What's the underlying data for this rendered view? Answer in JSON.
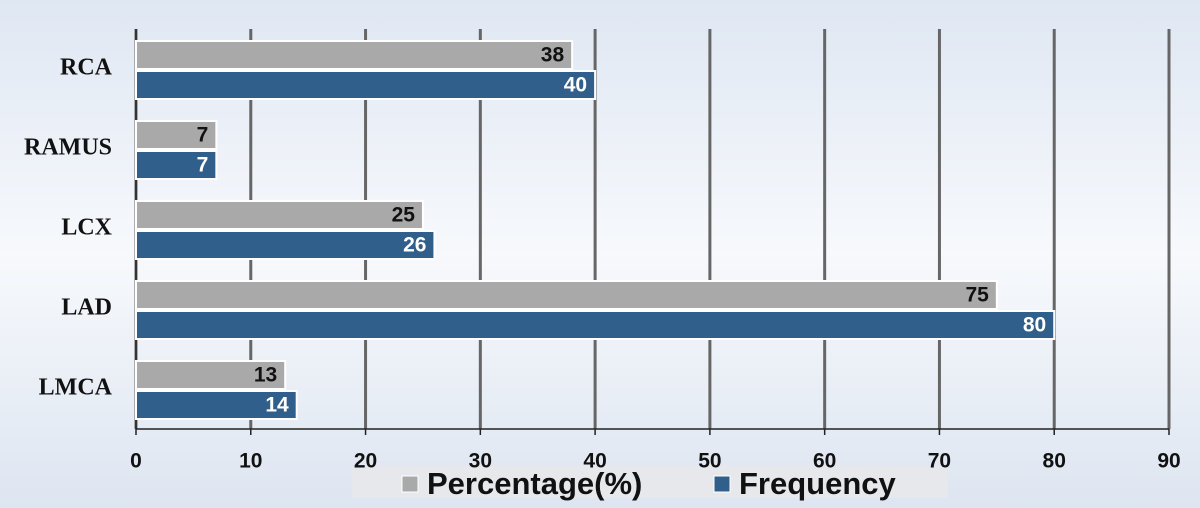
{
  "chart_data": {
    "type": "hbar",
    "categories": [
      "RCA",
      "RAMUS",
      "LCX",
      "LAD",
      "LMCA"
    ],
    "series": [
      {
        "name": "Percentage(%)",
        "color": "#a9a9a9",
        "values": [
          38,
          7,
          25,
          75,
          13
        ]
      },
      {
        "name": "Frequency",
        "color": "#2f5f8a",
        "values": [
          40,
          7,
          26,
          80,
          14
        ]
      }
    ],
    "xlim": [
      0,
      90
    ],
    "xticks": [
      0,
      10,
      20,
      30,
      40,
      50,
      60,
      70,
      80,
      90
    ],
    "grid": true
  }
}
